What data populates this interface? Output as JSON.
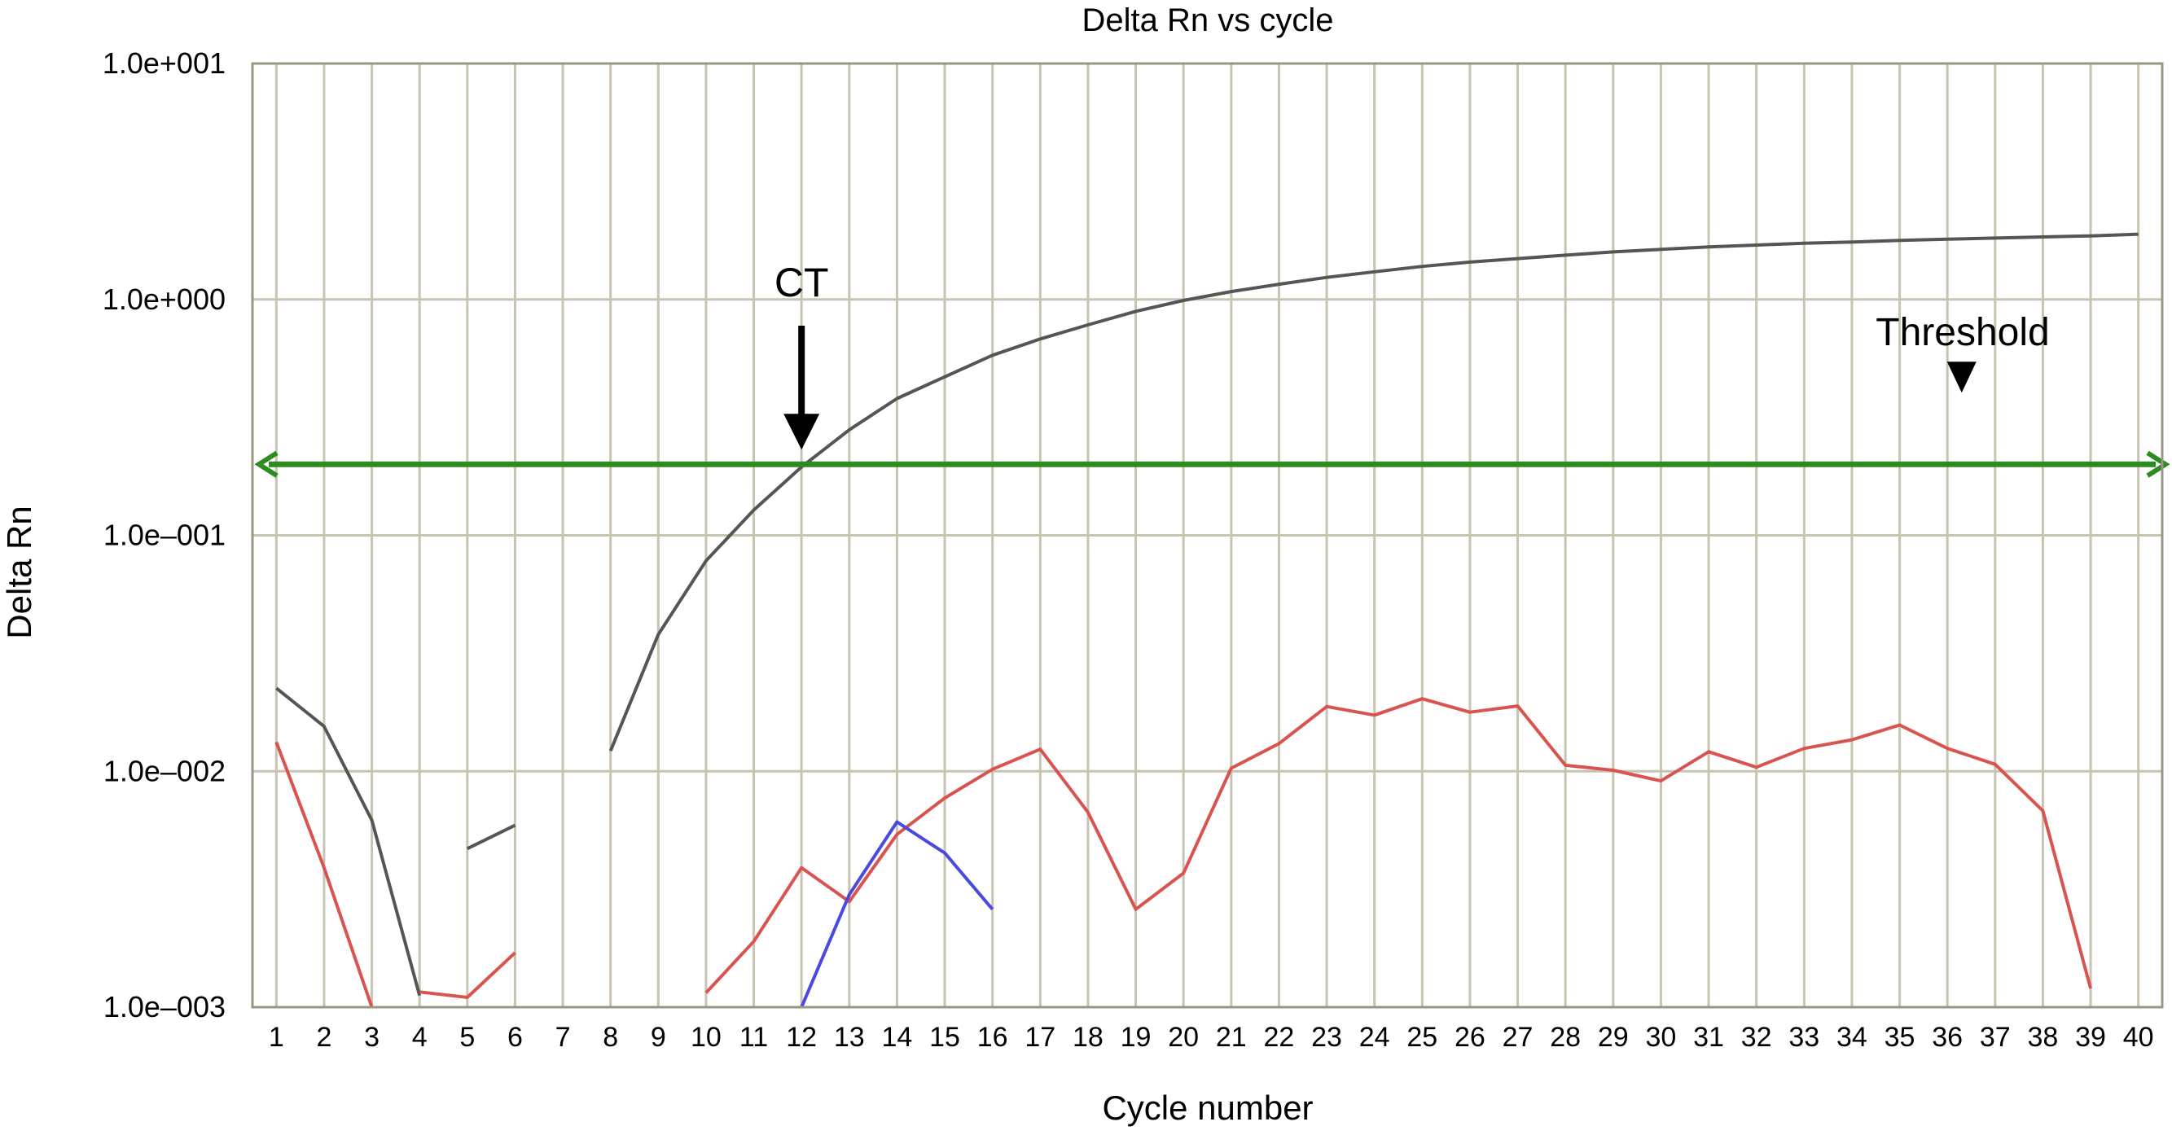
{
  "chart_data": {
    "type": "line",
    "title": "Delta Rn vs cycle",
    "xlabel": "Cycle number",
    "ylabel": "Delta Rn",
    "y_scale": "log",
    "xlim": [
      0.5,
      40.5
    ],
    "ylim": [
      0.001,
      10
    ],
    "x_ticks": [
      1,
      2,
      3,
      4,
      5,
      6,
      7,
      8,
      9,
      10,
      11,
      12,
      13,
      14,
      15,
      16,
      17,
      18,
      19,
      20,
      21,
      22,
      23,
      24,
      25,
      26,
      27,
      28,
      29,
      30,
      31,
      32,
      33,
      34,
      35,
      36,
      37,
      38,
      39,
      40
    ],
    "y_ticks": [
      0.001,
      0.01,
      0.1,
      1,
      10
    ],
    "y_tick_labels": [
      "1.0e–003",
      "1.0e–002",
      "1.0e–001",
      "1.0e+000",
      "1.0e+001"
    ],
    "grid": true,
    "background": "#ffffff",
    "grid_color": "#c9c3b3",
    "series": [
      {
        "color": "#555555",
        "segments": [
          [
            [
              1,
              0.0225
            ],
            [
              2,
              0.0155
            ],
            [
              3,
              0.0062
            ],
            [
              4,
              0.00112
            ]
          ],
          [
            [
              5,
              0.0047
            ],
            [
              6,
              0.0059
            ]
          ],
          [
            [
              8,
              0.0122
            ],
            [
              9,
              0.038
            ],
            [
              10,
              0.078
            ],
            [
              11,
              0.128
            ],
            [
              12,
              0.195
            ],
            [
              13,
              0.28
            ],
            [
              14,
              0.38
            ],
            [
              15,
              0.47
            ],
            [
              16,
              0.58
            ],
            [
              17,
              0.68
            ],
            [
              18,
              0.78
            ],
            [
              19,
              0.89
            ],
            [
              20,
              0.99
            ],
            [
              21,
              1.08
            ],
            [
              22,
              1.16
            ],
            [
              23,
              1.24
            ],
            [
              24,
              1.31
            ],
            [
              25,
              1.38
            ],
            [
              26,
              1.44
            ],
            [
              27,
              1.49
            ],
            [
              28,
              1.54
            ],
            [
              29,
              1.59
            ],
            [
              30,
              1.63
            ],
            [
              31,
              1.67
            ],
            [
              32,
              1.7
            ],
            [
              33,
              1.73
            ],
            [
              34,
              1.75
            ],
            [
              35,
              1.78
            ],
            [
              36,
              1.8
            ],
            [
              37,
              1.82
            ],
            [
              38,
              1.84
            ],
            [
              39,
              1.86
            ],
            [
              40,
              1.89
            ]
          ]
        ]
      },
      {
        "color": "#d9534f",
        "segments": [
          [
            [
              1,
              0.0133
            ],
            [
              2,
              0.0039
            ],
            [
              3,
              0.001
            ]
          ],
          [
            [
              4,
              0.00116
            ],
            [
              5,
              0.0011
            ],
            [
              6,
              0.0017
            ]
          ],
          [
            [
              10,
              0.00115
            ],
            [
              11,
              0.0019
            ],
            [
              12,
              0.0039
            ],
            [
              13,
              0.0028
            ],
            [
              14,
              0.0054
            ],
            [
              15,
              0.0077
            ],
            [
              16,
              0.0102
            ],
            [
              17,
              0.0124
            ],
            [
              18,
              0.0067
            ],
            [
              19,
              0.0026
            ],
            [
              20,
              0.0037
            ],
            [
              21,
              0.0103
            ],
            [
              22,
              0.0131
            ],
            [
              23,
              0.0188
            ],
            [
              24,
              0.0173
            ],
            [
              25,
              0.0203
            ],
            [
              26,
              0.0178
            ],
            [
              27,
              0.0189
            ],
            [
              28,
              0.0106
            ],
            [
              29,
              0.0101
            ],
            [
              30,
              0.0091
            ],
            [
              31,
              0.0121
            ],
            [
              32,
              0.0104
            ],
            [
              33,
              0.0125
            ],
            [
              34,
              0.0136
            ],
            [
              35,
              0.0157
            ],
            [
              36,
              0.0125
            ],
            [
              37,
              0.0107
            ],
            [
              38,
              0.0068
            ],
            [
              39,
              0.0012
            ]
          ]
        ]
      },
      {
        "color": "#4a4ae0",
        "segments": [
          [
            [
              12,
              0.001
            ],
            [
              13,
              0.003
            ],
            [
              14,
              0.0061
            ],
            [
              15,
              0.0045
            ],
            [
              16,
              0.0026
            ]
          ]
        ]
      }
    ],
    "threshold": {
      "value": 0.2,
      "color": "#2e8b22"
    },
    "annotations": [
      {
        "text": "CT",
        "x": 12,
        "arrow_to_y": 0.2
      },
      {
        "text": "Threshold",
        "x": 36.3,
        "arrow_to_y": 0.2
      }
    ]
  }
}
